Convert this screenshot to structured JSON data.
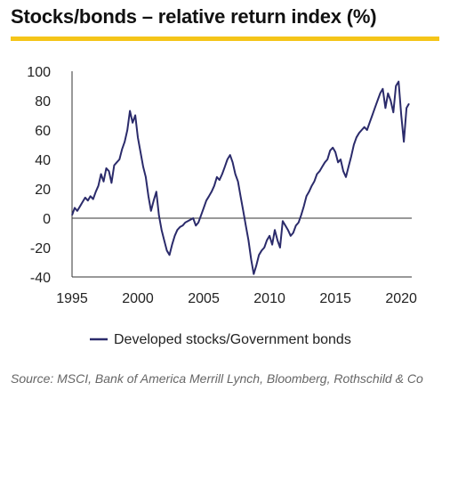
{
  "title": "Stocks/bonds – relative return index (%)",
  "accent_color": "#f5c518",
  "series_color": "#2b2b6b",
  "source": "Source: MSCI, Bank of America Merrill Lynch, Bloomberg, Rothschild & Co",
  "chart_data": {
    "type": "line",
    "title": "Stocks/bonds – relative return index (%)",
    "xlabel": "",
    "ylabel": "",
    "xlim": [
      1995,
      2020.8
    ],
    "ylim": [
      -40,
      100
    ],
    "xticks": [
      1995,
      2000,
      2005,
      2010,
      2015,
      2020
    ],
    "yticks": [
      100,
      80,
      60,
      40,
      20,
      0,
      -20,
      -40
    ],
    "grid": false,
    "legend_position": "bottom-center",
    "series": [
      {
        "name": "Developed stocks/Government bonds",
        "x": [
          1995.0,
          1995.2,
          1995.4,
          1995.6,
          1995.8,
          1996.0,
          1996.2,
          1996.4,
          1996.6,
          1996.8,
          1997.0,
          1997.2,
          1997.4,
          1997.6,
          1997.8,
          1998.0,
          1998.2,
          1998.4,
          1998.6,
          1998.8,
          1999.0,
          1999.2,
          1999.4,
          1999.6,
          1999.8,
          2000.0,
          2000.2,
          2000.4,
          2000.6,
          2000.8,
          2001.0,
          2001.2,
          2001.4,
          2001.6,
          2001.8,
          2002.0,
          2002.2,
          2002.4,
          2002.6,
          2002.8,
          2003.0,
          2003.2,
          2003.4,
          2003.6,
          2003.8,
          2004.0,
          2004.2,
          2004.4,
          2004.6,
          2004.8,
          2005.0,
          2005.2,
          2005.4,
          2005.6,
          2005.8,
          2006.0,
          2006.2,
          2006.4,
          2006.6,
          2006.8,
          2007.0,
          2007.2,
          2007.4,
          2007.6,
          2007.8,
          2008.0,
          2008.2,
          2008.4,
          2008.6,
          2008.8,
          2009.0,
          2009.2,
          2009.4,
          2009.6,
          2009.8,
          2010.0,
          2010.2,
          2010.4,
          2010.6,
          2010.8,
          2011.0,
          2011.2,
          2011.4,
          2011.6,
          2011.8,
          2012.0,
          2012.2,
          2012.4,
          2012.6,
          2012.8,
          2013.0,
          2013.2,
          2013.4,
          2013.6,
          2013.8,
          2014.0,
          2014.2,
          2014.4,
          2014.6,
          2014.8,
          2015.0,
          2015.2,
          2015.4,
          2015.6,
          2015.8,
          2016.0,
          2016.2,
          2016.4,
          2016.6,
          2016.8,
          2017.0,
          2017.2,
          2017.4,
          2017.6,
          2017.8,
          2018.0,
          2018.2,
          2018.4,
          2018.6,
          2018.8,
          2019.0,
          2019.2,
          2019.4,
          2019.6,
          2019.8,
          2020.0,
          2020.2,
          2020.4,
          2020.6
        ],
        "values": [
          2,
          7,
          5,
          8,
          11,
          14,
          12,
          15,
          13,
          18,
          22,
          30,
          25,
          34,
          32,
          24,
          36,
          38,
          40,
          47,
          52,
          60,
          73,
          65,
          70,
          55,
          45,
          35,
          28,
          15,
          5,
          12,
          18,
          2,
          -8,
          -15,
          -22,
          -25,
          -18,
          -12,
          -8,
          -6,
          -5,
          -3,
          -2,
          -1,
          0,
          -5,
          -3,
          2,
          7,
          12,
          15,
          18,
          22,
          28,
          26,
          30,
          35,
          40,
          43,
          38,
          30,
          25,
          15,
          5,
          -5,
          -15,
          -28,
          -38,
          -32,
          -25,
          -22,
          -20,
          -15,
          -12,
          -18,
          -8,
          -15,
          -20,
          -2,
          -5,
          -8,
          -12,
          -10,
          -5,
          -3,
          2,
          8,
          15,
          18,
          22,
          25,
          30,
          32,
          35,
          38,
          40,
          46,
          48,
          45,
          38,
          40,
          32,
          28,
          35,
          42,
          50,
          55,
          58,
          60,
          62,
          60,
          65,
          70,
          75,
          80,
          85,
          88,
          75,
          85,
          80,
          72,
          90,
          93,
          70,
          52,
          75,
          78
        ]
      }
    ]
  },
  "legend": {
    "label": "Developed stocks/Government bonds"
  }
}
